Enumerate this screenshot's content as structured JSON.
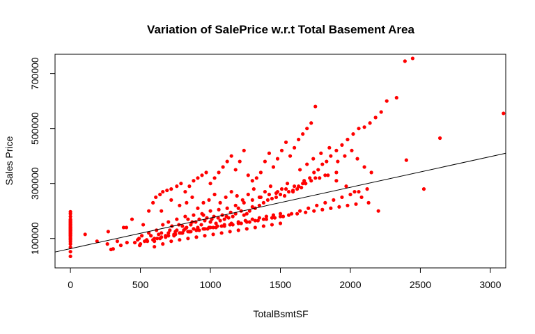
{
  "chart_data": {
    "type": "scatter",
    "title": "Variation of SalePrice w.r.t Total Basement Area",
    "xlabel": "TotalBsmtSF",
    "ylabel": "Sales Price",
    "xlim": [
      -110,
      3110
    ],
    "ylim": [
      -7000,
      770000
    ],
    "xticks": [
      0,
      500,
      1000,
      1500,
      2000,
      2500,
      3000
    ],
    "xtick_labels": [
      "0",
      "500",
      "1000",
      "1500",
      "2000",
      "2500",
      "3000"
    ],
    "yticks": [
      100000,
      300000,
      500000,
      700000
    ],
    "ytick_labels": [
      "100000",
      "300000",
      "500000",
      "700000"
    ],
    "point_color": "#ff0000",
    "line_color": "#000000",
    "grid": false,
    "regression_line": {
      "intercept": 63000,
      "slope": 111.6
    },
    "series": [
      {
        "type": "scatter",
        "x": [
          0,
          0,
          0,
          0,
          0,
          0,
          0,
          0,
          0,
          0,
          0,
          0,
          0,
          0,
          0,
          0,
          0,
          0,
          0,
          0,
          0,
          0,
          0,
          0,
          0,
          0,
          0,
          0,
          0,
          0,
          0,
          0,
          0,
          0,
          0,
          0,
          0,
          105,
          190,
          264,
          270,
          290,
          305,
          335,
          360,
          380,
          400,
          404,
          440,
          460,
          480,
          490,
          495,
          510,
          520,
          530,
          545,
          560,
          575,
          590,
          600,
          615,
          630,
          640,
          650,
          660,
          680,
          700,
          710,
          725,
          740,
          750,
          760,
          775,
          790,
          800,
          810,
          820,
          830,
          840,
          850,
          860,
          870,
          880,
          895,
          910,
          920,
          935,
          950,
          960,
          975,
          990,
          1000,
          1010,
          1025,
          1040,
          1055,
          1070,
          1085,
          1100,
          1115,
          1130,
          1145,
          1160,
          1180,
          1200,
          1220,
          1240,
          1260,
          1280,
          1300,
          1320,
          1350,
          1380,
          1410,
          1440,
          1470,
          1500,
          1530,
          1560,
          1590,
          1620,
          1650,
          1680,
          1710,
          1740,
          1770,
          1800,
          1830,
          1860,
          1900,
          1940,
          1980,
          2020,
          2060,
          2100,
          2140,
          2180,
          2220,
          2260,
          2330,
          2390,
          2400,
          2445,
          2525,
          2640,
          3094,
          560,
          590,
          610,
          640,
          660,
          690,
          720,
          760,
          790,
          820,
          850,
          880,
          910,
          940,
          970,
          1000,
          1030,
          1060,
          1090,
          1120,
          1150,
          1180,
          1210,
          1240,
          1270,
          1300,
          1330,
          1360,
          1390,
          1420,
          1450,
          1480,
          1510,
          1540,
          1570,
          1600,
          1630,
          1660,
          1690,
          1720,
          1750,
          620,
          680,
          740,
          800,
          860,
          920,
          980,
          1040,
          1100,
          1160,
          1220,
          1280,
          1340,
          1400,
          1460,
          1520,
          1580,
          1640,
          1700,
          1760,
          1820,
          1880,
          1940,
          2000,
          2060,
          2120,
          700,
          760,
          820,
          880,
          940,
          1000,
          1060,
          1120,
          1180,
          1240,
          1300,
          1360,
          1420,
          1480,
          1540,
          1600,
          1660,
          1720,
          1780,
          1840,
          1900,
          500,
          550,
          600,
          650,
          700,
          750,
          800,
          850,
          900,
          950,
          1000,
          1050,
          1100,
          1150,
          1200,
          1250,
          1300,
          1350,
          1400,
          1450,
          1500,
          780,
          840,
          900,
          960,
          1020,
          1080,
          1140,
          1200,
          1260,
          1320,
          1380,
          1440,
          1500,
          1560,
          1620,
          1680,
          1740,
          1800,
          1860,
          1920,
          1980,
          2040,
          650,
          720,
          780,
          830,
          870,
          910,
          950,
          990,
          1030,
          1070,
          1110,
          1150,
          1190,
          1230,
          1270,
          1310,
          1350,
          1390,
          1430,
          1470,
          1510,
          1550,
          1590,
          1630,
          1670,
          600,
          660,
          720,
          780,
          840,
          900,
          960,
          1020,
          1080,
          1140,
          1200,
          1260,
          1320,
          1380,
          1440,
          1500,
          1640,
          1690,
          1735,
          1790,
          1850,
          1910,
          1960,
          2010,
          2050,
          2100,
          2150,
          1680,
          1750,
          1820,
          1900,
          1970,
          2030,
          2080,
          2130,
          2200
        ],
        "y": [
          35000,
          52000,
          68000,
          80000,
          88000,
          95000,
          100000,
          105000,
          110000,
          112000,
          115000,
          118000,
          120000,
          122000,
          125000,
          127000,
          129000,
          130000,
          132000,
          134000,
          136000,
          138000,
          140000,
          142000,
          145000,
          148000,
          150000,
          152000,
          155000,
          158000,
          160000,
          163000,
          167000,
          170000,
          180000,
          190000,
          197000,
          115000,
          90000,
          80000,
          125000,
          60000,
          62000,
          90000,
          75000,
          140000,
          140000,
          85000,
          170000,
          85000,
          95000,
          100000,
          75000,
          110000,
          150000,
          90000,
          95000,
          120000,
          110000,
          95000,
          90000,
          130000,
          115000,
          100000,
          120000,
          150000,
          105000,
          120000,
          130000,
          145000,
          110000,
          125000,
          130000,
          150000,
          120000,
          145000,
          130000,
          135000,
          140000,
          170000,
          125000,
          150000,
          160000,
          135000,
          160000,
          140000,
          170000,
          150000,
          185000,
          165000,
          175000,
          140000,
          160000,
          170000,
          180000,
          155000,
          175000,
          165000,
          185000,
          170000,
          180000,
          175000,
          195000,
          180000,
          190000,
          210000,
          200000,
          185000,
          190000,
          200000,
          215000,
          210000,
          220000,
          230000,
          240000,
          245000,
          250000,
          260000,
          255000,
          270000,
          275000,
          280000,
          285000,
          300000,
          320000,
          340000,
          350000,
          370000,
          380000,
          400000,
          420000,
          440000,
          460000,
          480000,
          500000,
          505000,
          520000,
          540000,
          560000,
          600000,
          612000,
          745000,
          385000,
          755000,
          280000,
          465000,
          555000,
          200000,
          230000,
          250000,
          260000,
          270000,
          275000,
          280000,
          290000,
          300000,
          270000,
          290000,
          310000,
          320000,
          330000,
          340000,
          300000,
          320000,
          340000,
          360000,
          380000,
          400000,
          350000,
          380000,
          420000,
          330000,
          310000,
          320000,
          340000,
          380000,
          410000,
          360000,
          390000,
          420000,
          450000,
          400000,
          430000,
          460000,
          480000,
          500000,
          520000,
          580000,
          100000,
          110000,
          115000,
          120000,
          125000,
          130000,
          135000,
          140000,
          145000,
          150000,
          155000,
          160000,
          165000,
          170000,
          175000,
          180000,
          190000,
          200000,
          210000,
          220000,
          230000,
          240000,
          250000,
          260000,
          270000,
          280000,
          160000,
          170000,
          180000,
          185000,
          190000,
          200000,
          205000,
          210000,
          220000,
          230000,
          240000,
          250000,
          260000,
          270000,
          280000,
          290000,
          300000,
          310000,
          320000,
          330000,
          340000,
          80000,
          90000,
          100000,
          105000,
          110000,
          115000,
          120000,
          125000,
          130000,
          135000,
          140000,
          145000,
          150000,
          155000,
          160000,
          165000,
          170000,
          175000,
          180000,
          185000,
          190000,
          120000,
          125000,
          130000,
          135000,
          140000,
          145000,
          150000,
          155000,
          160000,
          165000,
          170000,
          175000,
          180000,
          185000,
          190000,
          195000,
          200000,
          205000,
          210000,
          215000,
          220000,
          225000,
          200000,
          240000,
          220000,
          230000,
          250000,
          210000,
          230000,
          240000,
          260000,
          230000,
          250000,
          270000,
          255000,
          240000,
          260000,
          280000,
          250000,
          270000,
          290000,
          265000,
          280000,
          300000,
          270000,
          290000,
          310000,
          70000,
          80000,
          90000,
          95000,
          100000,
          105000,
          110000,
          115000,
          120000,
          125000,
          130000,
          135000,
          140000,
          145000,
          150000,
          155000,
          350000,
          370000,
          390000,
          410000,
          430000,
          380000,
          400000,
          420000,
          390000,
          360000,
          340000,
          300000,
          320000,
          330000,
          310000,
          290000,
          270000,
          250000,
          230000,
          200000
        ]
      }
    ]
  }
}
